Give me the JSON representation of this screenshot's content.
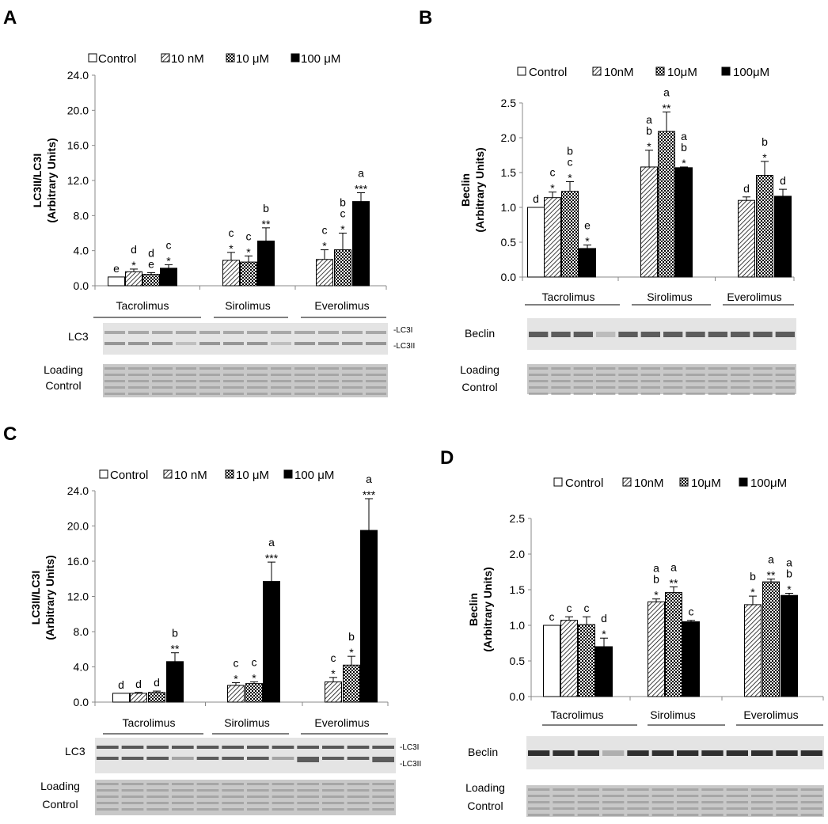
{
  "legend": {
    "control": "Control",
    "nm_ac": "10 nM",
    "um_ac": "10 μM",
    "hi_ac": "100 μM",
    "nm_bd": "10nM",
    "um_bd": "10μM",
    "hi_bd": "100μM"
  },
  "colors": {
    "control": "#ffffff",
    "hatch": "#000000",
    "solid": "#000000"
  },
  "blot": {
    "lc3": "LC3",
    "beclin": "Beclin",
    "loading_l1": "Loading",
    "loading_l2": "Control",
    "band_lc3i": "-LC3I",
    "band_lc3ii": "-LC3II"
  },
  "chart_data": [
    {
      "panel": "A",
      "type": "bar",
      "ylabel_l1": "LC3II/LC3I",
      "ylabel_l2": "(Arbitrary Units)",
      "ylim": [
        0,
        24
      ],
      "yticks": [
        "0.0",
        "4.0",
        "8.0",
        "12.0",
        "16.0",
        "20.0",
        "24.0"
      ],
      "groups": [
        {
          "name": "Tacrolimus",
          "values": [
            1.0,
            1.6,
            1.3,
            2.0
          ],
          "errors": [
            0.0,
            0.3,
            0.2,
            0.4
          ],
          "labels": [
            [
              "e"
            ],
            [
              "d",
              "*"
            ],
            [
              "d",
              "e"
            ],
            [
              "c",
              "*"
            ]
          ]
        },
        {
          "name": "Sirolimus",
          "values": [
            2.9,
            2.7,
            5.1
          ],
          "errors": [
            0.9,
            0.7,
            1.5
          ],
          "labels": [
            [
              "c",
              "*"
            ],
            [
              "c",
              "*"
            ],
            [
              "b",
              "**"
            ]
          ]
        },
        {
          "name": "Everolimus",
          "values": [
            3.0,
            4.1,
            9.6
          ],
          "errors": [
            1.1,
            1.9,
            1.0
          ],
          "labels": [
            [
              "c",
              "*"
            ],
            [
              "b",
              "c",
              "*"
            ],
            [
              "a",
              "***"
            ]
          ]
        }
      ]
    },
    {
      "panel": "B",
      "type": "bar",
      "ylabel_l1": "Beclin",
      "ylabel_l2": "(Arbitrary Units)",
      "ylim": [
        0,
        2.5
      ],
      "yticks": [
        "0.0",
        "0.5",
        "1.0",
        "1.5",
        "2.0",
        "2.5"
      ],
      "groups": [
        {
          "name": "Tacrolimus",
          "values": [
            1.0,
            1.14,
            1.23,
            0.41
          ],
          "errors": [
            0.0,
            0.08,
            0.14,
            0.05
          ],
          "labels": [
            [
              "d"
            ],
            [
              "c",
              "*"
            ],
            [
              "b",
              "c",
              "*"
            ],
            [
              "e",
              "*"
            ]
          ]
        },
        {
          "name": "Sirolimus",
          "values": [
            1.58,
            2.09,
            1.57
          ],
          "errors": [
            0.24,
            0.28,
            0.01
          ],
          "labels": [
            [
              "a",
              "b",
              "*"
            ],
            [
              "a",
              "**"
            ],
            [
              "a",
              "b",
              "*"
            ]
          ]
        },
        {
          "name": "Everolimus",
          "values": [
            1.1,
            1.46,
            1.16
          ],
          "errors": [
            0.05,
            0.2,
            0.1
          ],
          "labels": [
            [
              "d"
            ],
            [
              "b",
              "*"
            ],
            [
              "d"
            ]
          ]
        }
      ]
    },
    {
      "panel": "C",
      "type": "bar",
      "ylabel_l1": "LC3II/LC3I",
      "ylabel_l2": "(Arbitrary Units)",
      "ylim": [
        0,
        24
      ],
      "yticks": [
        "0.0",
        "4.0",
        "8.0",
        "12.0",
        "16.0",
        "20.0",
        "24.0"
      ],
      "groups": [
        {
          "name": "Tacrolimus",
          "values": [
            1.0,
            1.0,
            1.1,
            4.6
          ],
          "errors": [
            0.0,
            0.1,
            0.15,
            1.0
          ],
          "labels": [
            [
              "d"
            ],
            [
              "d"
            ],
            [
              "d"
            ],
            [
              "b",
              "**"
            ]
          ]
        },
        {
          "name": "Sirolimus",
          "values": [
            1.9,
            2.1,
            13.7
          ],
          "errors": [
            0.3,
            0.2,
            2.2
          ],
          "labels": [
            [
              "c",
              "*"
            ],
            [
              "c",
              "*"
            ],
            [
              "a",
              "***"
            ]
          ]
        },
        {
          "name": "Everolimus",
          "values": [
            2.3,
            4.2,
            19.5
          ],
          "errors": [
            0.5,
            1.0,
            3.6
          ],
          "labels": [
            [
              "c",
              "*"
            ],
            [
              "b",
              "*"
            ],
            [
              "a",
              "***"
            ]
          ]
        }
      ]
    },
    {
      "panel": "D",
      "type": "bar",
      "ylabel_l1": "Beclin",
      "ylabel_l2": "(Arbitrary Units)",
      "ylim": [
        0,
        2.5
      ],
      "yticks": [
        "0.0",
        "0.5",
        "1.0",
        "1.5",
        "2.0",
        "2.5"
      ],
      "groups": [
        {
          "name": "Tacrolimus",
          "values": [
            1.0,
            1.07,
            1.01,
            0.7
          ],
          "errors": [
            0.0,
            0.05,
            0.11,
            0.12
          ],
          "labels": [
            [
              "c"
            ],
            [
              "c"
            ],
            [
              "c"
            ],
            [
              "d",
              "*"
            ]
          ]
        },
        {
          "name": "Sirolimus",
          "values": [
            1.33,
            1.46,
            1.05
          ],
          "errors": [
            0.04,
            0.08,
            0.02
          ],
          "labels": [
            [
              "a",
              "b",
              "*"
            ],
            [
              "a",
              "**"
            ],
            [
              "c"
            ]
          ]
        },
        {
          "name": "Everolimus",
          "values": [
            1.29,
            1.61,
            1.42
          ],
          "errors": [
            0.12,
            0.04,
            0.03
          ],
          "labels": [
            [
              "b",
              "*"
            ],
            [
              "a",
              "**"
            ],
            [
              "a",
              "b",
              "*"
            ]
          ]
        }
      ]
    }
  ]
}
